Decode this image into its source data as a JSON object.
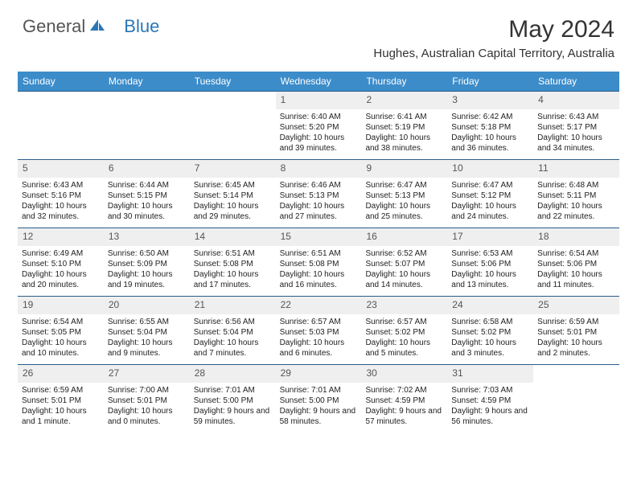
{
  "logo": {
    "text1": "General",
    "text2": "Blue"
  },
  "title": "May 2024",
  "location": "Hughes, Australian Capital Territory, Australia",
  "colors": {
    "header_bg": "#3c8cca",
    "header_text": "#ffffff",
    "row_border": "#2a5d8a",
    "daynum_bg": "#efefef",
    "logo_accent": "#2a77b8"
  },
  "typography": {
    "title_fontsize": 30,
    "location_fontsize": 15,
    "dow_fontsize": 12,
    "daynum_fontsize": 12,
    "body_fontsize": 10
  },
  "days_of_week": [
    "Sunday",
    "Monday",
    "Tuesday",
    "Wednesday",
    "Thursday",
    "Friday",
    "Saturday"
  ],
  "weeks": [
    [
      {
        "n": "",
        "sr": "",
        "ss": "",
        "dl": ""
      },
      {
        "n": "",
        "sr": "",
        "ss": "",
        "dl": ""
      },
      {
        "n": "",
        "sr": "",
        "ss": "",
        "dl": ""
      },
      {
        "n": "1",
        "sr": "Sunrise: 6:40 AM",
        "ss": "Sunset: 5:20 PM",
        "dl": "Daylight: 10 hours and 39 minutes."
      },
      {
        "n": "2",
        "sr": "Sunrise: 6:41 AM",
        "ss": "Sunset: 5:19 PM",
        "dl": "Daylight: 10 hours and 38 minutes."
      },
      {
        "n": "3",
        "sr": "Sunrise: 6:42 AM",
        "ss": "Sunset: 5:18 PM",
        "dl": "Daylight: 10 hours and 36 minutes."
      },
      {
        "n": "4",
        "sr": "Sunrise: 6:43 AM",
        "ss": "Sunset: 5:17 PM",
        "dl": "Daylight: 10 hours and 34 minutes."
      }
    ],
    [
      {
        "n": "5",
        "sr": "Sunrise: 6:43 AM",
        "ss": "Sunset: 5:16 PM",
        "dl": "Daylight: 10 hours and 32 minutes."
      },
      {
        "n": "6",
        "sr": "Sunrise: 6:44 AM",
        "ss": "Sunset: 5:15 PM",
        "dl": "Daylight: 10 hours and 30 minutes."
      },
      {
        "n": "7",
        "sr": "Sunrise: 6:45 AM",
        "ss": "Sunset: 5:14 PM",
        "dl": "Daylight: 10 hours and 29 minutes."
      },
      {
        "n": "8",
        "sr": "Sunrise: 6:46 AM",
        "ss": "Sunset: 5:13 PM",
        "dl": "Daylight: 10 hours and 27 minutes."
      },
      {
        "n": "9",
        "sr": "Sunrise: 6:47 AM",
        "ss": "Sunset: 5:13 PM",
        "dl": "Daylight: 10 hours and 25 minutes."
      },
      {
        "n": "10",
        "sr": "Sunrise: 6:47 AM",
        "ss": "Sunset: 5:12 PM",
        "dl": "Daylight: 10 hours and 24 minutes."
      },
      {
        "n": "11",
        "sr": "Sunrise: 6:48 AM",
        "ss": "Sunset: 5:11 PM",
        "dl": "Daylight: 10 hours and 22 minutes."
      }
    ],
    [
      {
        "n": "12",
        "sr": "Sunrise: 6:49 AM",
        "ss": "Sunset: 5:10 PM",
        "dl": "Daylight: 10 hours and 20 minutes."
      },
      {
        "n": "13",
        "sr": "Sunrise: 6:50 AM",
        "ss": "Sunset: 5:09 PM",
        "dl": "Daylight: 10 hours and 19 minutes."
      },
      {
        "n": "14",
        "sr": "Sunrise: 6:51 AM",
        "ss": "Sunset: 5:08 PM",
        "dl": "Daylight: 10 hours and 17 minutes."
      },
      {
        "n": "15",
        "sr": "Sunrise: 6:51 AM",
        "ss": "Sunset: 5:08 PM",
        "dl": "Daylight: 10 hours and 16 minutes."
      },
      {
        "n": "16",
        "sr": "Sunrise: 6:52 AM",
        "ss": "Sunset: 5:07 PM",
        "dl": "Daylight: 10 hours and 14 minutes."
      },
      {
        "n": "17",
        "sr": "Sunrise: 6:53 AM",
        "ss": "Sunset: 5:06 PM",
        "dl": "Daylight: 10 hours and 13 minutes."
      },
      {
        "n": "18",
        "sr": "Sunrise: 6:54 AM",
        "ss": "Sunset: 5:06 PM",
        "dl": "Daylight: 10 hours and 11 minutes."
      }
    ],
    [
      {
        "n": "19",
        "sr": "Sunrise: 6:54 AM",
        "ss": "Sunset: 5:05 PM",
        "dl": "Daylight: 10 hours and 10 minutes."
      },
      {
        "n": "20",
        "sr": "Sunrise: 6:55 AM",
        "ss": "Sunset: 5:04 PM",
        "dl": "Daylight: 10 hours and 9 minutes."
      },
      {
        "n": "21",
        "sr": "Sunrise: 6:56 AM",
        "ss": "Sunset: 5:04 PM",
        "dl": "Daylight: 10 hours and 7 minutes."
      },
      {
        "n": "22",
        "sr": "Sunrise: 6:57 AM",
        "ss": "Sunset: 5:03 PM",
        "dl": "Daylight: 10 hours and 6 minutes."
      },
      {
        "n": "23",
        "sr": "Sunrise: 6:57 AM",
        "ss": "Sunset: 5:02 PM",
        "dl": "Daylight: 10 hours and 5 minutes."
      },
      {
        "n": "24",
        "sr": "Sunrise: 6:58 AM",
        "ss": "Sunset: 5:02 PM",
        "dl": "Daylight: 10 hours and 3 minutes."
      },
      {
        "n": "25",
        "sr": "Sunrise: 6:59 AM",
        "ss": "Sunset: 5:01 PM",
        "dl": "Daylight: 10 hours and 2 minutes."
      }
    ],
    [
      {
        "n": "26",
        "sr": "Sunrise: 6:59 AM",
        "ss": "Sunset: 5:01 PM",
        "dl": "Daylight: 10 hours and 1 minute."
      },
      {
        "n": "27",
        "sr": "Sunrise: 7:00 AM",
        "ss": "Sunset: 5:01 PM",
        "dl": "Daylight: 10 hours and 0 minutes."
      },
      {
        "n": "28",
        "sr": "Sunrise: 7:01 AM",
        "ss": "Sunset: 5:00 PM",
        "dl": "Daylight: 9 hours and 59 minutes."
      },
      {
        "n": "29",
        "sr": "Sunrise: 7:01 AM",
        "ss": "Sunset: 5:00 PM",
        "dl": "Daylight: 9 hours and 58 minutes."
      },
      {
        "n": "30",
        "sr": "Sunrise: 7:02 AM",
        "ss": "Sunset: 4:59 PM",
        "dl": "Daylight: 9 hours and 57 minutes."
      },
      {
        "n": "31",
        "sr": "Sunrise: 7:03 AM",
        "ss": "Sunset: 4:59 PM",
        "dl": "Daylight: 9 hours and 56 minutes."
      },
      {
        "n": "",
        "sr": "",
        "ss": "",
        "dl": ""
      }
    ]
  ]
}
